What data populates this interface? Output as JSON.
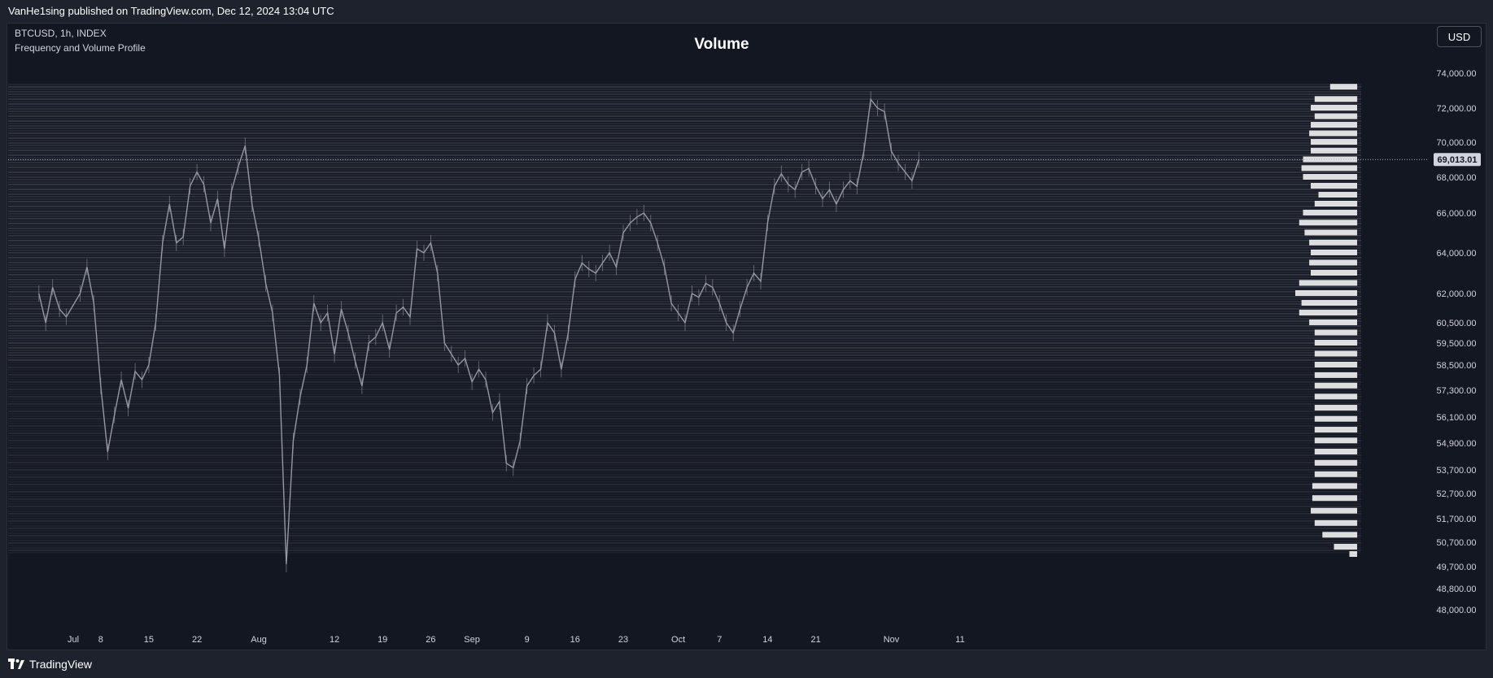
{
  "header": {
    "published": "VanHe1sing published on TradingView.com, Dec 12, 2024 13:04 UTC"
  },
  "chart_info": {
    "symbol": "BTCUSD, 1h, INDEX",
    "indicator": "Frequency and Volume Profile"
  },
  "currency_button": "USD",
  "footer": {
    "brand": "TradingView"
  },
  "colors": {
    "background": "#131722",
    "candles": "#9598a1",
    "profile": "#ffffff",
    "band": "#5d606b"
  },
  "chart_data": {
    "type": "line",
    "title": "Volume",
    "price_ticks": [
      74000,
      72000,
      70000,
      68000,
      66000,
      64000,
      62000,
      60500,
      59500,
      58500,
      57300,
      56100,
      54900,
      53700,
      52700,
      51700,
      50700,
      49700,
      48800,
      48000
    ],
    "price_tick_labels": [
      "74,000.00",
      "72,000.00",
      "70,000.00",
      "68,000.00",
      "66,000.00",
      "64,000.00",
      "62,000.00",
      "60,500.00",
      "59,500.00",
      "58,500.00",
      "57,300.00",
      "56,100.00",
      "54,900.00",
      "53,700.00",
      "52,700.00",
      "51,700.00",
      "50,700.00",
      "49,700.00",
      "48,800.00",
      "48,000.00"
    ],
    "current_price": 69013.01,
    "current_price_label": "69,013.01",
    "time_ticks": [
      {
        "label": "Jul",
        "day": 4
      },
      {
        "label": "8",
        "day": 8
      },
      {
        "label": "15",
        "day": 15
      },
      {
        "label": "22",
        "day": 22
      },
      {
        "label": "Aug",
        "day": 31
      },
      {
        "label": "12",
        "day": 42
      },
      {
        "label": "19",
        "day": 49
      },
      {
        "label": "26",
        "day": 56
      },
      {
        "label": "Sep",
        "day": 62
      },
      {
        "label": "9",
        "day": 70
      },
      {
        "label": "16",
        "day": 77
      },
      {
        "label": "23",
        "day": 84
      },
      {
        "label": "Oct",
        "day": 92
      },
      {
        "label": "7",
        "day": 98
      },
      {
        "label": "14",
        "day": 105
      },
      {
        "label": "21",
        "day": 112
      },
      {
        "label": "Nov",
        "day": 123
      },
      {
        "label": "11",
        "day": 133
      }
    ],
    "series": [
      {
        "values": [
          {
            "day": -1,
            "price": 62000
          },
          {
            "day": 0,
            "price": 60500
          },
          {
            "day": 1,
            "price": 62300
          },
          {
            "day": 2,
            "price": 61200
          },
          {
            "day": 3,
            "price": 60800
          },
          {
            "day": 5,
            "price": 62000
          },
          {
            "day": 6,
            "price": 63300
          },
          {
            "day": 7,
            "price": 61500
          },
          {
            "day": 8,
            "price": 57500
          },
          {
            "day": 9,
            "price": 54500
          },
          {
            "day": 10,
            "price": 56200
          },
          {
            "day": 11,
            "price": 57800
          },
          {
            "day": 12,
            "price": 56500
          },
          {
            "day": 13,
            "price": 58200
          },
          {
            "day": 14,
            "price": 57800
          },
          {
            "day": 15,
            "price": 58500
          },
          {
            "day": 16,
            "price": 60500
          },
          {
            "day": 17,
            "price": 64500
          },
          {
            "day": 18,
            "price": 66500
          },
          {
            "day": 19,
            "price": 64500
          },
          {
            "day": 20,
            "price": 64800
          },
          {
            "day": 21,
            "price": 67500
          },
          {
            "day": 22,
            "price": 68300
          },
          {
            "day": 23,
            "price": 67600
          },
          {
            "day": 24,
            "price": 65500
          },
          {
            "day": 25,
            "price": 66800
          },
          {
            "day": 26,
            "price": 64200
          },
          {
            "day": 27,
            "price": 67200
          },
          {
            "day": 28,
            "price": 68600
          },
          {
            "day": 29,
            "price": 69800
          },
          {
            "day": 30,
            "price": 66500
          },
          {
            "day": 31,
            "price": 64700
          },
          {
            "day": 32,
            "price": 62500
          },
          {
            "day": 33,
            "price": 61000
          },
          {
            "day": 34,
            "price": 58000
          },
          {
            "day": 35,
            "price": 49800
          },
          {
            "day": 36,
            "price": 55000
          },
          {
            "day": 37,
            "price": 57000
          },
          {
            "day": 38,
            "price": 58500
          },
          {
            "day": 39,
            "price": 61500
          },
          {
            "day": 40,
            "price": 60500
          },
          {
            "day": 41,
            "price": 61000
          },
          {
            "day": 42,
            "price": 59000
          },
          {
            "day": 43,
            "price": 61200
          },
          {
            "day": 44,
            "price": 60000
          },
          {
            "day": 45,
            "price": 58700
          },
          {
            "day": 46,
            "price": 57500
          },
          {
            "day": 47,
            "price": 59500
          },
          {
            "day": 48,
            "price": 59800
          },
          {
            "day": 49,
            "price": 60500
          },
          {
            "day": 50,
            "price": 59200
          },
          {
            "day": 51,
            "price": 61000
          },
          {
            "day": 52,
            "price": 61300
          },
          {
            "day": 53,
            "price": 60800
          },
          {
            "day": 54,
            "price": 64200
          },
          {
            "day": 55,
            "price": 64000
          },
          {
            "day": 56,
            "price": 64500
          },
          {
            "day": 57,
            "price": 63000
          },
          {
            "day": 58,
            "price": 59500
          },
          {
            "day": 59,
            "price": 59000
          },
          {
            "day": 60,
            "price": 58500
          },
          {
            "day": 61,
            "price": 58800
          },
          {
            "day": 62,
            "price": 57700
          },
          {
            "day": 63,
            "price": 58300
          },
          {
            "day": 64,
            "price": 57800
          },
          {
            "day": 65,
            "price": 56300
          },
          {
            "day": 66,
            "price": 56800
          },
          {
            "day": 67,
            "price": 54000
          },
          {
            "day": 68,
            "price": 53800
          },
          {
            "day": 69,
            "price": 55000
          },
          {
            "day": 70,
            "price": 57500
          },
          {
            "day": 71,
            "price": 58000
          },
          {
            "day": 72,
            "price": 58300
          },
          {
            "day": 73,
            "price": 60500
          },
          {
            "day": 74,
            "price": 60000
          },
          {
            "day": 75,
            "price": 58300
          },
          {
            "day": 76,
            "price": 60000
          },
          {
            "day": 77,
            "price": 62700
          },
          {
            "day": 78,
            "price": 63500
          },
          {
            "day": 79,
            "price": 63200
          },
          {
            "day": 80,
            "price": 63000
          },
          {
            "day": 81,
            "price": 63500
          },
          {
            "day": 82,
            "price": 64000
          },
          {
            "day": 83,
            "price": 63300
          },
          {
            "day": 84,
            "price": 65000
          },
          {
            "day": 85,
            "price": 65500
          },
          {
            "day": 86,
            "price": 65800
          },
          {
            "day": 87,
            "price": 66000
          },
          {
            "day": 88,
            "price": 65500
          },
          {
            "day": 89,
            "price": 64500
          },
          {
            "day": 90,
            "price": 63300
          },
          {
            "day": 91,
            "price": 61500
          },
          {
            "day": 92,
            "price": 61000
          },
          {
            "day": 93,
            "price": 60500
          },
          {
            "day": 94,
            "price": 62000
          },
          {
            "day": 95,
            "price": 61800
          },
          {
            "day": 96,
            "price": 62500
          },
          {
            "day": 97,
            "price": 62300
          },
          {
            "day": 98,
            "price": 61500
          },
          {
            "day": 99,
            "price": 60500
          },
          {
            "day": 100,
            "price": 60000
          },
          {
            "day": 101,
            "price": 61200
          },
          {
            "day": 102,
            "price": 62300
          },
          {
            "day": 103,
            "price": 63000
          },
          {
            "day": 104,
            "price": 62600
          },
          {
            "day": 105,
            "price": 65500
          },
          {
            "day": 106,
            "price": 67500
          },
          {
            "day": 107,
            "price": 68200
          },
          {
            "day": 108,
            "price": 67600
          },
          {
            "day": 109,
            "price": 67300
          },
          {
            "day": 110,
            "price": 68300
          },
          {
            "day": 111,
            "price": 68500
          },
          {
            "day": 112,
            "price": 67500
          },
          {
            "day": 113,
            "price": 66800
          },
          {
            "day": 114,
            "price": 67300
          },
          {
            "day": 115,
            "price": 66500
          },
          {
            "day": 116,
            "price": 67300
          },
          {
            "day": 117,
            "price": 67800
          },
          {
            "day": 118,
            "price": 67500
          },
          {
            "day": 119,
            "price": 69500
          },
          {
            "day": 120,
            "price": 72500
          },
          {
            "day": 121,
            "price": 72000
          },
          {
            "day": 122,
            "price": 71800
          },
          {
            "day": 123,
            "price": 69500
          },
          {
            "day": 124,
            "price": 68800
          },
          {
            "day": 125,
            "price": 68300
          },
          {
            "day": 126,
            "price": 67800
          },
          {
            "day": 127,
            "price": 69000
          }
        ]
      }
    ],
    "volume_profile": {
      "note_levels": "relative profile width per price level",
      "levels": [
        {
          "price": 73200,
          "rel": 0.35
        },
        {
          "price": 72500,
          "rel": 0.55
        },
        {
          "price": 72000,
          "rel": 0.6
        },
        {
          "price": 71500,
          "rel": 0.55
        },
        {
          "price": 71000,
          "rel": 0.6
        },
        {
          "price": 70500,
          "rel": 0.62
        },
        {
          "price": 70000,
          "rel": 0.6
        },
        {
          "price": 69500,
          "rel": 0.6
        },
        {
          "price": 69000,
          "rel": 0.7
        },
        {
          "price": 68500,
          "rel": 0.72
        },
        {
          "price": 68000,
          "rel": 0.7
        },
        {
          "price": 67500,
          "rel": 0.6
        },
        {
          "price": 67000,
          "rel": 0.5
        },
        {
          "price": 66500,
          "rel": 0.55
        },
        {
          "price": 66000,
          "rel": 0.7
        },
        {
          "price": 65500,
          "rel": 0.75
        },
        {
          "price": 65000,
          "rel": 0.68
        },
        {
          "price": 64500,
          "rel": 0.62
        },
        {
          "price": 64000,
          "rel": 0.6
        },
        {
          "price": 63500,
          "rel": 0.62
        },
        {
          "price": 63000,
          "rel": 0.6
        },
        {
          "price": 62500,
          "rel": 0.75
        },
        {
          "price": 62000,
          "rel": 0.8
        },
        {
          "price": 61500,
          "rel": 0.72
        },
        {
          "price": 61000,
          "rel": 0.75
        },
        {
          "price": 60500,
          "rel": 0.62
        },
        {
          "price": 60000,
          "rel": 0.55
        },
        {
          "price": 59500,
          "rel": 0.55
        },
        {
          "price": 59000,
          "rel": 0.55
        },
        {
          "price": 58500,
          "rel": 0.55
        },
        {
          "price": 58000,
          "rel": 0.55
        },
        {
          "price": 57500,
          "rel": 0.55
        },
        {
          "price": 57000,
          "rel": 0.55
        },
        {
          "price": 56500,
          "rel": 0.55
        },
        {
          "price": 56000,
          "rel": 0.55
        },
        {
          "price": 55500,
          "rel": 0.55
        },
        {
          "price": 55000,
          "rel": 0.55
        },
        {
          "price": 54500,
          "rel": 0.55
        },
        {
          "price": 54000,
          "rel": 0.55
        },
        {
          "price": 53500,
          "rel": 0.55
        },
        {
          "price": 53000,
          "rel": 0.58
        },
        {
          "price": 52500,
          "rel": 0.58
        },
        {
          "price": 52000,
          "rel": 0.6
        },
        {
          "price": 51500,
          "rel": 0.55
        },
        {
          "price": 51000,
          "rel": 0.45
        },
        {
          "price": 50500,
          "rel": 0.3
        },
        {
          "price": 50200,
          "rel": 0.1
        }
      ]
    }
  }
}
